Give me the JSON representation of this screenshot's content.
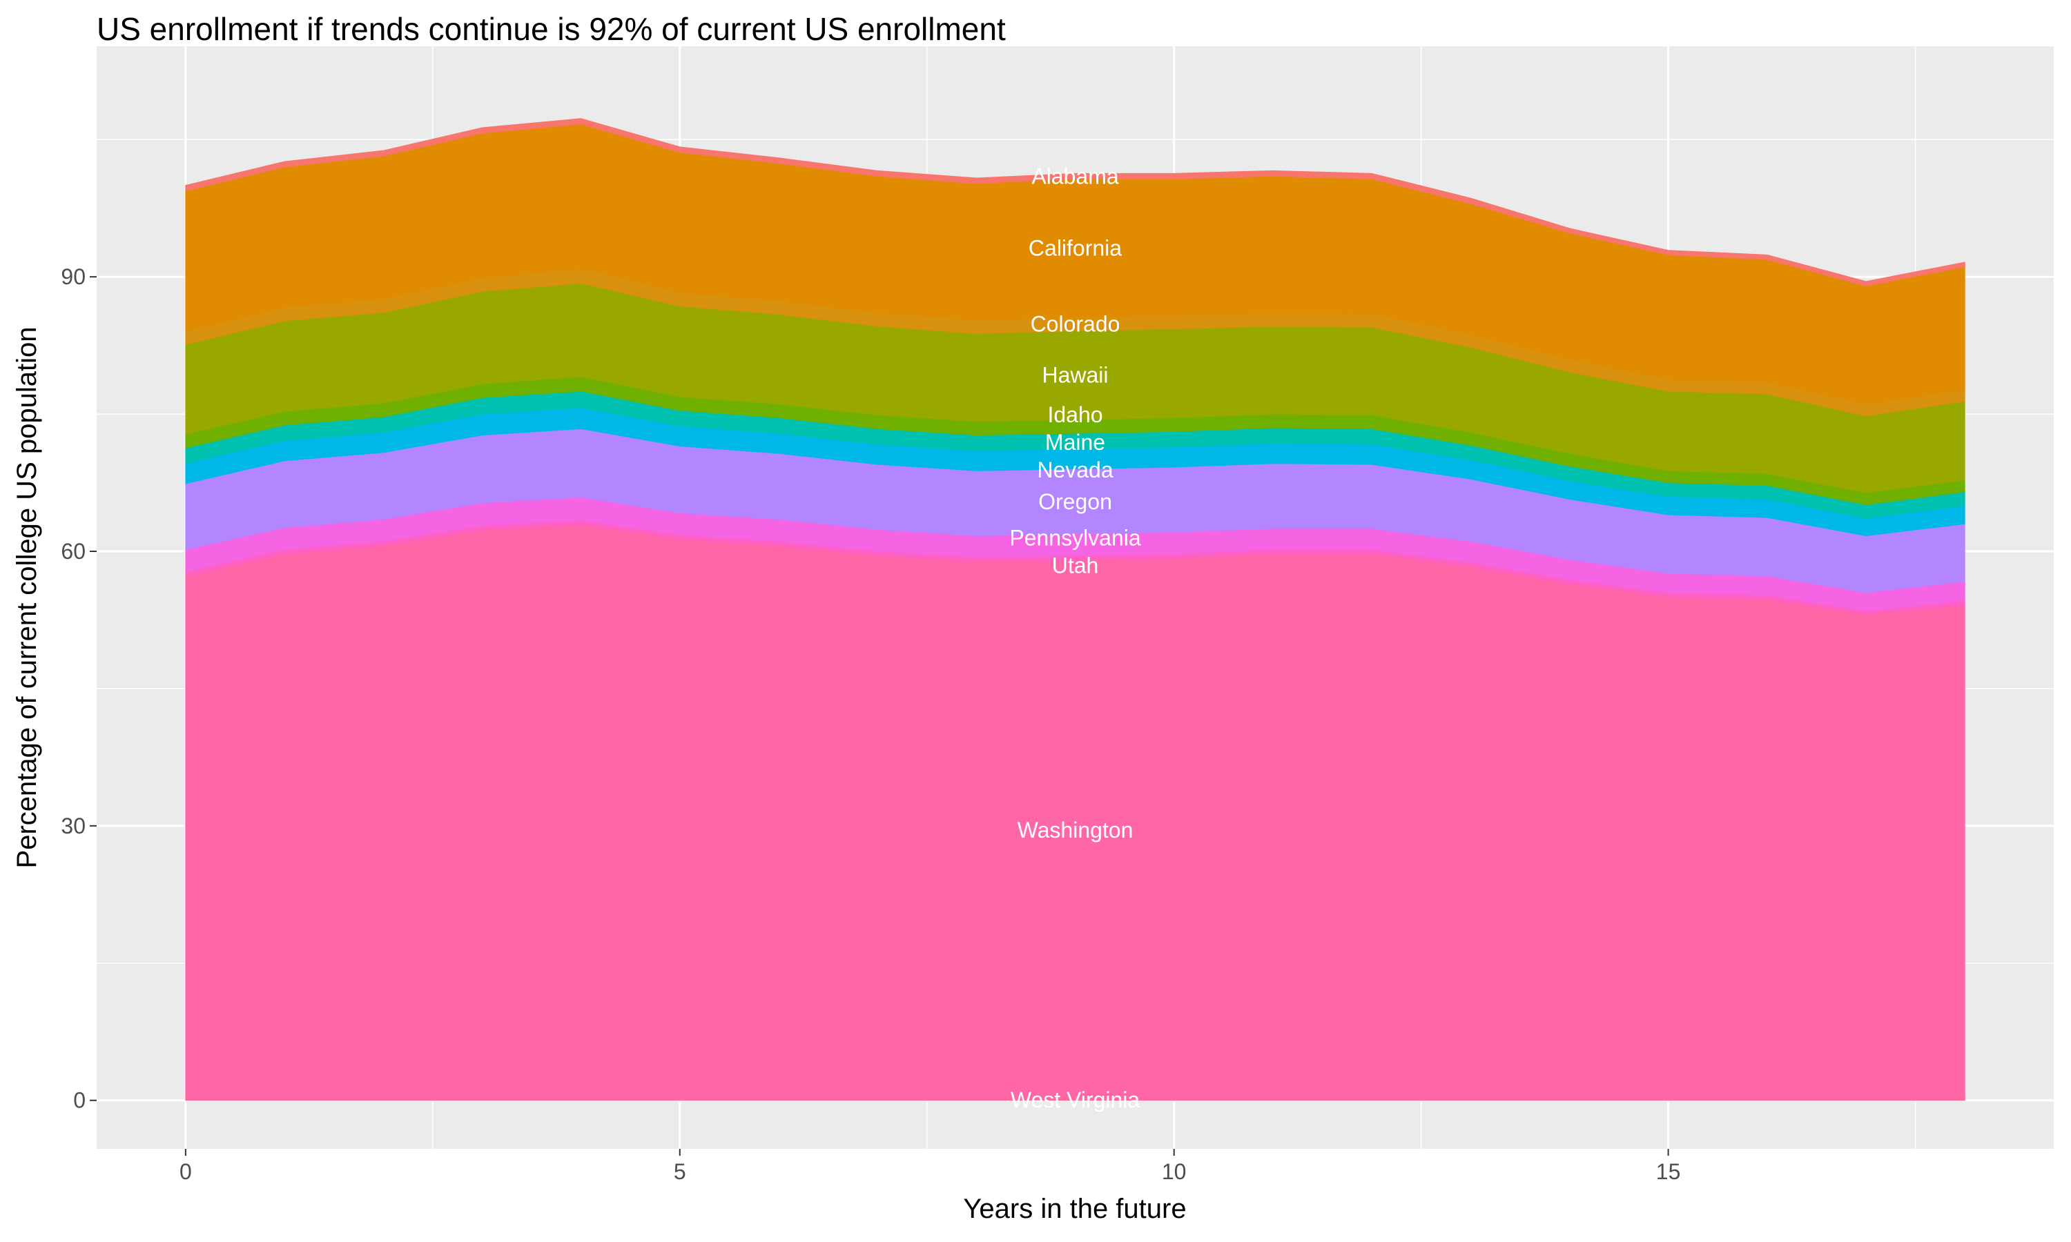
{
  "chart_data": {
    "type": "area",
    "stacked": true,
    "title": "US enrollment if trends continue is 92% of current US enrollment",
    "xlabel": "Years in the future",
    "ylabel": "Percentage of current college US population",
    "xlim": [
      -0.9,
      18.9
    ],
    "ylim": [
      -5.3,
      115.2
    ],
    "xticks": [
      0,
      5,
      10,
      15
    ],
    "yticks": [
      0,
      30,
      60,
      90
    ],
    "grid": true,
    "legend": "none",
    "label_x": 9,
    "x": [
      0,
      1,
      2,
      3,
      4,
      5,
      6,
      7,
      8,
      9,
      10,
      11,
      12,
      13,
      14,
      15,
      16,
      17,
      18
    ],
    "series": [
      {
        "name": "West Virginia",
        "color": "#FF6C91",
        "values": [
          0.1,
          0.1,
          0.1,
          0.1,
          0.1,
          0.1,
          0.1,
          0.1,
          0.1,
          0.1,
          0.1,
          0.1,
          0.1,
          0.1,
          0.1,
          0.1,
          0.1,
          0.1,
          0.1
        ]
      },
      {
        "name": "Washington",
        "color": "#FF66A8",
        "values": [
          57.2,
          59.6,
          60.5,
          62.2,
          62.8,
          61.2,
          60.5,
          59.4,
          58.8,
          58.9,
          59.1,
          59.6,
          59.6,
          58.2,
          56.3,
          54.9,
          54.6,
          53.0,
          54.0
        ]
      },
      {
        "name": "Utah",
        "color": "#FF61C3",
        "values": [
          0.5,
          0.5,
          0.5,
          0.5,
          0.5,
          0.5,
          0.5,
          0.5,
          0.5,
          0.5,
          0.5,
          0.5,
          0.5,
          0.5,
          0.5,
          0.5,
          0.5,
          0.4,
          0.5
        ]
      },
      {
        "name": "Pennsylvania",
        "color": "#F564E3",
        "values": [
          2.4,
          2.4,
          2.4,
          2.5,
          2.5,
          2.4,
          2.4,
          2.4,
          2.3,
          2.4,
          2.4,
          2.3,
          2.3,
          2.3,
          2.2,
          2.1,
          2.1,
          2.0,
          2.1
        ]
      },
      {
        "name": "Oregon",
        "color": "#B385FF",
        "values": [
          7.2,
          7.3,
          7.3,
          7.4,
          7.5,
          7.3,
          7.2,
          7.1,
          7.1,
          7.1,
          7.1,
          7.1,
          7.0,
          6.8,
          6.6,
          6.4,
          6.4,
          6.2,
          6.3
        ]
      },
      {
        "name": "Nevada",
        "color": "#00B8E7",
        "values": [
          2.2,
          2.2,
          2.2,
          2.3,
          2.3,
          2.2,
          2.2,
          2.2,
          2.2,
          2.2,
          2.2,
          2.2,
          2.2,
          2.1,
          2.0,
          2.0,
          2.0,
          1.9,
          2.0
        ]
      },
      {
        "name": "Maine",
        "color": "#00C0AF",
        "values": [
          1.7,
          1.7,
          1.7,
          1.8,
          1.8,
          1.7,
          1.7,
          1.7,
          1.7,
          1.7,
          1.7,
          1.7,
          1.7,
          1.6,
          1.6,
          1.5,
          1.5,
          1.5,
          1.5
        ]
      },
      {
        "name": "Idaho",
        "color": "#6FB000",
        "values": [
          1.5,
          1.5,
          1.5,
          1.5,
          1.6,
          1.5,
          1.5,
          1.5,
          1.5,
          1.5,
          1.5,
          1.5,
          1.5,
          1.4,
          1.4,
          1.3,
          1.3,
          1.3,
          1.3
        ]
      },
      {
        "name": "Hawaii",
        "color": "#99A800",
        "values": [
          9.8,
          9.9,
          9.9,
          10.1,
          10.2,
          9.9,
          9.8,
          9.7,
          9.6,
          9.7,
          9.7,
          9.6,
          9.6,
          9.3,
          8.9,
          8.7,
          8.7,
          8.4,
          8.6
        ]
      },
      {
        "name": "Colorado",
        "color": "#D8900F",
        "values": [
          1.5,
          1.5,
          1.5,
          1.5,
          1.6,
          1.5,
          1.5,
          1.5,
          1.5,
          1.5,
          1.5,
          1.5,
          1.5,
          1.4,
          1.4,
          1.3,
          1.3,
          1.3,
          1.3
        ]
      },
      {
        "name": "California",
        "color": "#E08B00",
        "values": [
          15.3,
          15.3,
          15.6,
          15.8,
          15.8,
          15.3,
          15.0,
          14.9,
          14.9,
          15.1,
          14.9,
          14.9,
          14.7,
          14.3,
          13.8,
          13.6,
          13.4,
          12.9,
          13.4
        ]
      },
      {
        "name": "Alabama",
        "color": "#F8766D",
        "values": [
          0.6,
          0.6,
          0.6,
          0.6,
          0.6,
          0.6,
          0.6,
          0.6,
          0.6,
          0.6,
          0.6,
          0.6,
          0.6,
          0.6,
          0.5,
          0.5,
          0.5,
          0.5,
          0.5
        ]
      }
    ]
  }
}
